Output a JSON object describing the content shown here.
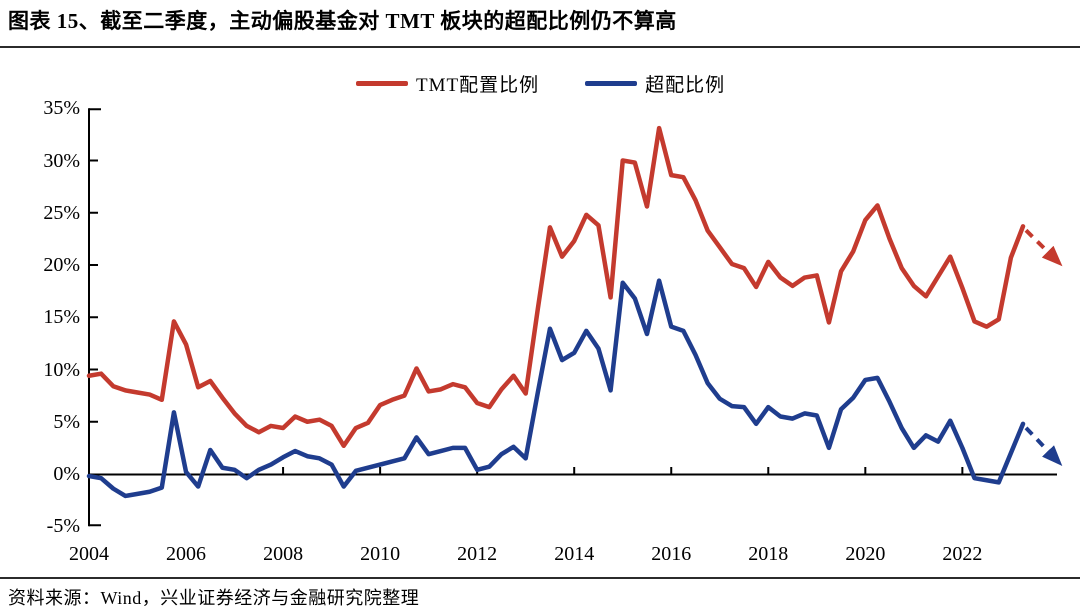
{
  "title": "图表 15、截至二季度，主动偏股基金对 TMT 板块的超配比例仍不算高",
  "source_note": "资料来源：Wind，兴业证券经济与金融研究院整理",
  "colors": {
    "red": "#c43a2e",
    "blue": "#1f3d8e",
    "axis": "#000000"
  },
  "chart_data": {
    "type": "line",
    "title": "图表 15、截至二季度，主动偏股基金对 TMT 板块的超配比例仍不算高",
    "frequency": "quarterly",
    "x_start": "2004Q1",
    "x_end": "2023Q2",
    "x_tick_labels": [
      "2004",
      "2006",
      "2008",
      "2010",
      "2012",
      "2014",
      "2016",
      "2018",
      "2020",
      "2022"
    ],
    "y_tick_labels": [
      "35%",
      "30%",
      "25%",
      "20%",
      "15%",
      "10%",
      "5%",
      "0%",
      "-5%"
    ],
    "y_tick_values": [
      35,
      30,
      25,
      20,
      15,
      10,
      5,
      0,
      -5
    ],
    "ylim": [
      -5,
      35
    ],
    "grid": false,
    "legend_position": "top-center",
    "series": [
      {
        "name": "TMT配置比例",
        "color": "#c43a2e",
        "values": [
          9.4,
          9.6,
          8.4,
          8.0,
          7.8,
          7.6,
          7.1,
          14.6,
          12.4,
          8.3,
          8.9,
          7.3,
          5.8,
          4.6,
          4.0,
          4.6,
          4.4,
          5.5,
          5.0,
          5.2,
          4.6,
          2.7,
          4.4,
          4.9,
          6.6,
          7.1,
          7.5,
          10.1,
          7.9,
          8.1,
          8.6,
          8.3,
          6.8,
          6.4,
          8.1,
          9.4,
          7.7,
          15.8,
          23.6,
          20.8,
          22.3,
          24.8,
          23.8,
          16.9,
          30.0,
          29.8,
          25.6,
          33.1,
          28.6,
          28.4,
          26.2,
          23.3,
          21.7,
          20.1,
          19.7,
          17.9,
          20.3,
          18.8,
          18.0,
          18.8,
          19.0,
          14.5,
          19.4,
          21.3,
          24.3,
          25.7,
          22.5,
          19.7,
          18.0,
          17.0,
          18.9,
          20.8,
          17.8,
          14.6,
          14.1,
          14.8,
          20.7,
          23.7
        ]
      },
      {
        "name": "超配比例",
        "color": "#1f3d8e",
        "values": [
          -0.2,
          -0.4,
          -1.4,
          -2.1,
          -1.9,
          -1.7,
          -1.3,
          5.9,
          0.2,
          -1.2,
          2.3,
          0.6,
          0.4,
          -0.4,
          0.4,
          0.9,
          1.6,
          2.2,
          1.7,
          1.5,
          0.9,
          -1.2,
          0.3,
          0.6,
          0.9,
          1.2,
          1.5,
          3.5,
          1.9,
          2.2,
          2.5,
          2.5,
          0.4,
          0.7,
          1.9,
          2.6,
          1.5,
          7.8,
          13.9,
          10.9,
          11.6,
          13.7,
          12.0,
          8.0,
          18.3,
          16.8,
          13.4,
          18.5,
          14.1,
          13.7,
          11.4,
          8.7,
          7.2,
          6.5,
          6.4,
          4.8,
          6.4,
          5.5,
          5.3,
          5.8,
          5.6,
          2.5,
          6.2,
          7.3,
          9.0,
          9.2,
          6.9,
          4.4,
          2.5,
          3.7,
          3.1,
          5.1,
          2.5,
          -0.4,
          -0.6,
          -0.8,
          2.0,
          4.8
        ]
      }
    ],
    "forecast_arrows": [
      {
        "series_index": 0,
        "style": "dashed-arrow",
        "from_value": 23.7,
        "to_value": 20.3
      },
      {
        "series_index": 1,
        "style": "dashed-arrow",
        "from_value": 4.8,
        "to_value": 1.2
      }
    ]
  }
}
